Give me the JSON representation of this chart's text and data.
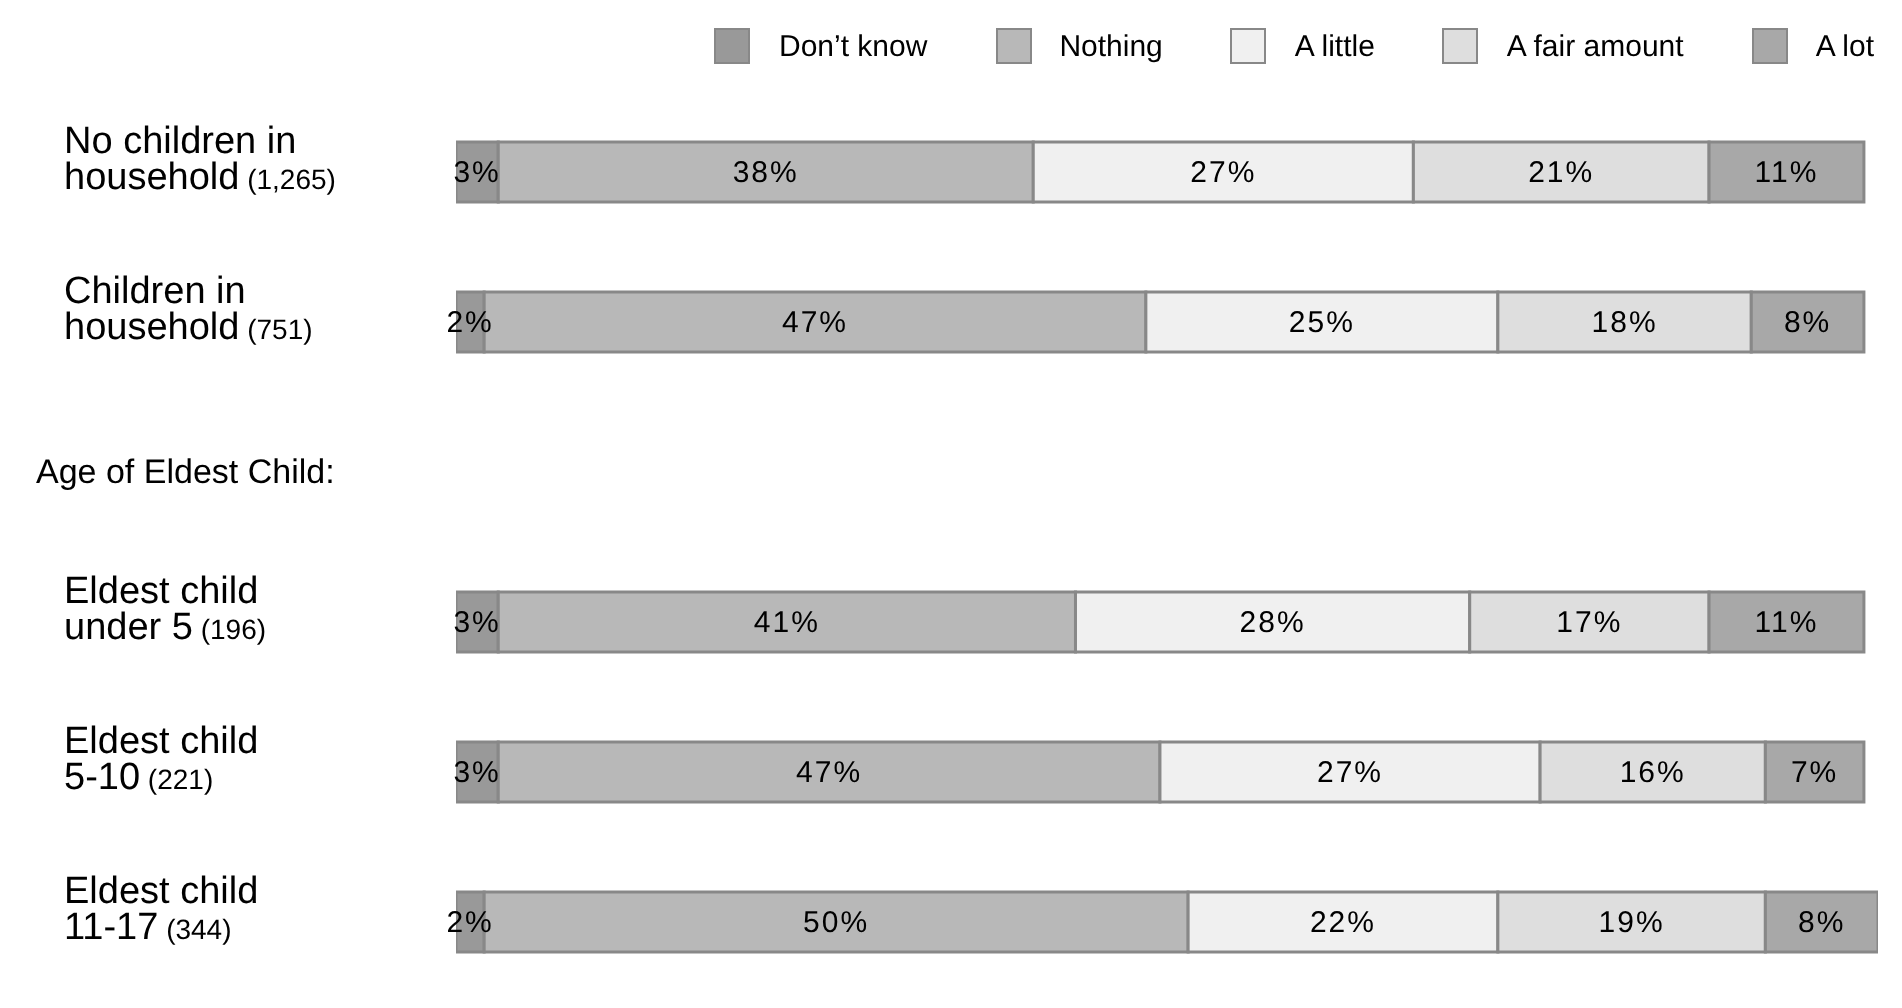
{
  "chart_data": {
    "type": "bar",
    "orientation": "horizontal",
    "stacked": true,
    "legend": "top",
    "data_labels": true,
    "categories": [
      "No children in household (1,265)",
      "Children in household (751)",
      null,
      "Eldest child under 5 (196)",
      "Eldest child 5-10 (221)",
      "Eldest child 11-17 (344)"
    ],
    "annotations": [
      "Age of Eldest Child:"
    ],
    "series": [
      {
        "name": "Don’t know",
        "color": "#999999",
        "values": [
          3,
          2,
          null,
          3,
          3,
          2
        ],
        "value_labels": [
          "3%",
          "2%",
          null,
          "3%",
          "3%",
          "2%"
        ]
      },
      {
        "name": "Nothing",
        "color": "#b8b8b8",
        "values": [
          38,
          47,
          null,
          41,
          47,
          50
        ],
        "value_labels": [
          "38%",
          "47%",
          null,
          "41%",
          "47%",
          "50%"
        ]
      },
      {
        "name": "A little",
        "color": "#f0f0f0",
        "values": [
          27,
          25,
          null,
          28,
          27,
          22
        ],
        "value_labels": [
          "27%",
          "25%",
          null,
          "28%",
          "27%",
          "22%"
        ]
      },
      {
        "name": "A fair amount",
        "color": "#dedede",
        "values": [
          21,
          18,
          null,
          17,
          16,
          19
        ],
        "value_labels": [
          "21%",
          "18%",
          null,
          "17%",
          "16%",
          "19%"
        ]
      },
      {
        "name": "A lot",
        "color": "#a8a8a8",
        "values": [
          11,
          8,
          null,
          11,
          7,
          8
        ],
        "value_labels": [
          "11%",
          "8%",
          null,
          "11%",
          "7%",
          "8%"
        ]
      }
    ]
  }
}
